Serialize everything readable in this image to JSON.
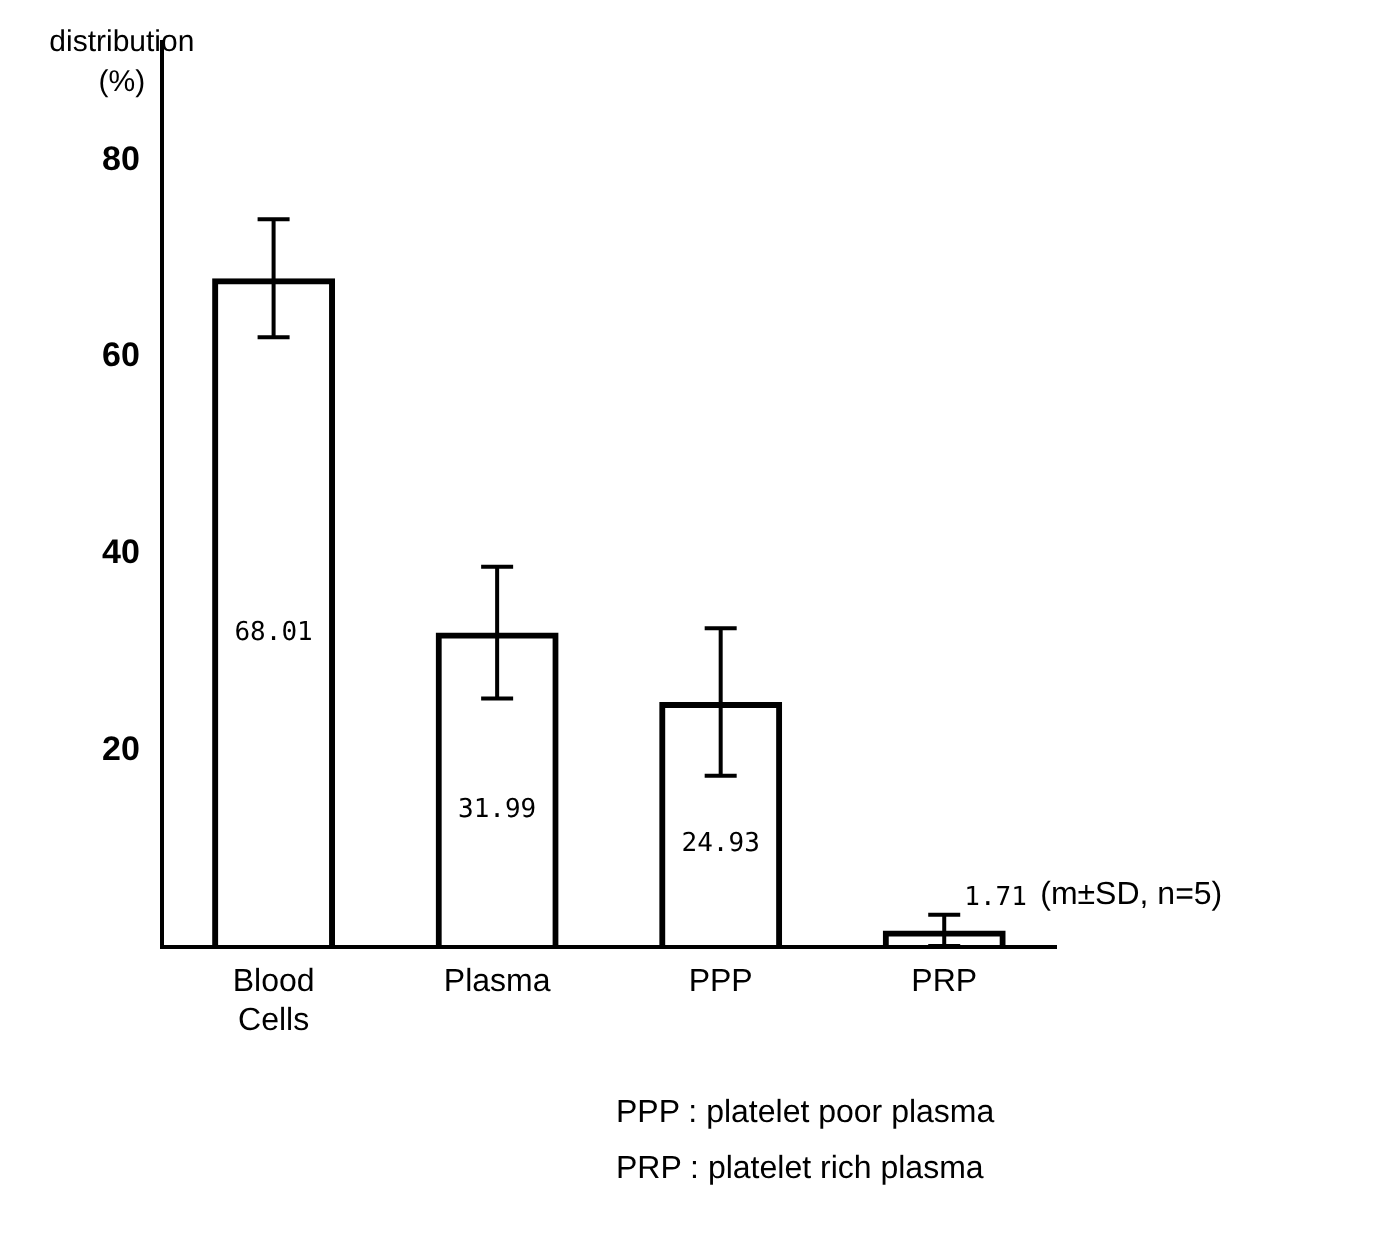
{
  "chart_data": {
    "type": "bar",
    "ylabel": "distribution (%)",
    "categories": [
      "Blood Cells",
      "Plasma",
      "PPP",
      "PRP"
    ],
    "values": [
      68.01,
      31.99,
      24.93,
      1.71
    ],
    "errors": [
      6,
      6.7,
      7.5,
      1.6
    ],
    "color": "#000000",
    "data_labels": true,
    "grid": false,
    "legend": false,
    "ylim": [
      0,
      92
    ],
    "yticks": [
      20,
      40,
      60,
      80
    ],
    "annotations": [
      "(m±SD, n=5)",
      "PPP : platelet poor plasma",
      "PRP : platelet rich plasma"
    ]
  }
}
